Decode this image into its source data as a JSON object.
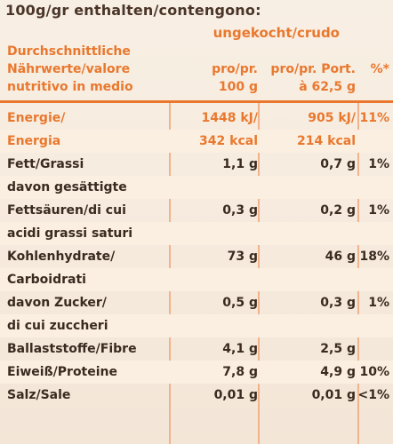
{
  "header": {
    "title": "100g/gr enthalten/contengono:",
    "cooked_state": "ungekocht/crudo",
    "col1_line1": "Durchschnittliche",
    "col1_line2": "Nährwerte/valore",
    "col1_line3": "nutritivo in medio",
    "col2_line1": "pro/pr.",
    "col2_line2": "100 g",
    "col3_line1": "pro/pr. Port.",
    "col3_line2": "à 62,5 g",
    "col4": "%*"
  },
  "rows": [
    {
      "label": "Energie/",
      "v100": "1448 kJ/",
      "vport": "905 kJ/",
      "pct": "11%"
    },
    {
      "label": "Energia",
      "v100": "342 kcal",
      "vport": "214 kcal",
      "pct": ""
    },
    {
      "label": "Fett/Grassi",
      "v100": "1,1 g",
      "vport": "0,7 g",
      "pct": "1%"
    },
    {
      "label": "davon gesättigte",
      "v100": "",
      "vport": "",
      "pct": ""
    },
    {
      "label": "Fettsäuren/di cui",
      "v100": "0,3 g",
      "vport": "0,2 g",
      "pct": "1%"
    },
    {
      "label": "acidi grassi saturi",
      "v100": "",
      "vport": "",
      "pct": ""
    },
    {
      "label": "Kohlenhydrate/",
      "v100": "73 g",
      "vport": "46 g",
      "pct": "18%"
    },
    {
      "label": "Carboidrati",
      "v100": "",
      "vport": "",
      "pct": ""
    },
    {
      "label": "davon Zucker/",
      "v100": "0,5 g",
      "vport": "0,3 g",
      "pct": "1%"
    },
    {
      "label": "di cui zuccheri",
      "v100": "",
      "vport": "",
      "pct": ""
    },
    {
      "label": "Ballaststoffe/Fibre",
      "v100": "4,1 g",
      "vport": "2,5 g",
      "pct": ""
    },
    {
      "label": "Eiweiß/Proteine",
      "v100": "7,8 g",
      "vport": "4,9 g",
      "pct": "10%"
    },
    {
      "label": "Salz/Sale",
      "v100": "0,01 g",
      "vport": "0,01 g",
      "pct": "<1%"
    }
  ],
  "colors": {
    "accent": "#e9782e",
    "text": "#3a2a20",
    "background": "#f6ece0"
  }
}
